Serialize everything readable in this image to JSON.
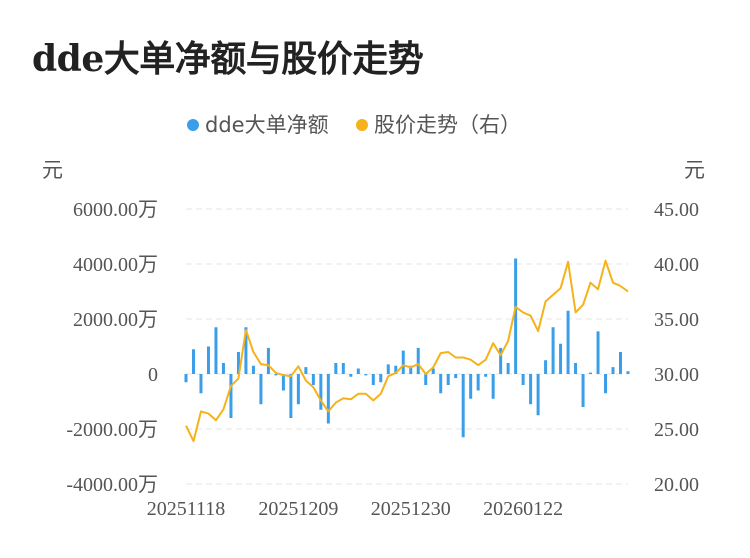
{
  "title": "dde大单净额与股价走势",
  "chart_data": {
    "type": "bar+line",
    "legend": [
      {
        "name": "dde大单净额",
        "color": "#3a9ee8"
      },
      {
        "name": "股价走势（右）",
        "color": "#f5b21b"
      }
    ],
    "left_unit": "元",
    "right_unit": "元",
    "left_axis": {
      "min": -4000,
      "max": 6000,
      "ticks": [
        -4000,
        -2000,
        0,
        2000,
        4000,
        6000
      ],
      "tick_labels": [
        "-4000.00万",
        "-2000.00万",
        "0",
        "2000.00万",
        "4000.00万",
        "6000.00万"
      ]
    },
    "right_axis": {
      "min": 20,
      "max": 45,
      "ticks": [
        20,
        25,
        30,
        35,
        40,
        45
      ],
      "tick_labels": [
        "20.00",
        "25.00",
        "30.00",
        "35.00",
        "40.00",
        "45.00"
      ]
    },
    "x_labels": [
      {
        "index": 0,
        "label": "20251118"
      },
      {
        "index": 15,
        "label": "20251209"
      },
      {
        "index": 30,
        "label": "20251230"
      },
      {
        "index": 45,
        "label": "20260122"
      }
    ],
    "grid": "horizontal-dashed",
    "bars": [
      -300,
      900,
      -700,
      1000,
      1700,
      400,
      -1600,
      800,
      1700,
      300,
      -1100,
      950,
      -50,
      -600,
      -1600,
      -1100,
      250,
      -400,
      -1300,
      -1800,
      400,
      400,
      -100,
      200,
      -50,
      -400,
      -300,
      350,
      300,
      850,
      300,
      950,
      -400,
      200,
      -700,
      -400,
      -150,
      -2300,
      -900,
      -600,
      -100,
      -900,
      950,
      400,
      4200,
      -400,
      -1100,
      -1500,
      500,
      1700,
      1100,
      2300,
      400,
      -1200,
      50,
      1550,
      -700,
      250,
      800,
      100
    ],
    "prices": [
      25.3,
      23.9,
      26.6,
      26.4,
      25.8,
      26.8,
      28.9,
      29.6,
      34.0,
      32.0,
      30.9,
      30.8,
      30.1,
      29.9,
      29.8,
      30.7,
      29.4,
      28.8,
      27.6,
      26.6,
      27.4,
      27.8,
      27.7,
      28.2,
      28.2,
      27.6,
      28.2,
      29.8,
      30.1,
      30.8,
      30.6,
      30.9,
      30.0,
      30.6,
      31.9,
      32.0,
      31.5,
      31.5,
      31.3,
      30.8,
      31.3,
      32.8,
      31.7,
      33.0,
      36.1,
      35.6,
      35.3,
      33.9,
      36.6,
      37.2,
      37.8,
      40.2,
      35.6,
      36.3,
      38.3,
      37.7,
      40.3,
      38.3,
      38.0,
      37.5
    ]
  }
}
